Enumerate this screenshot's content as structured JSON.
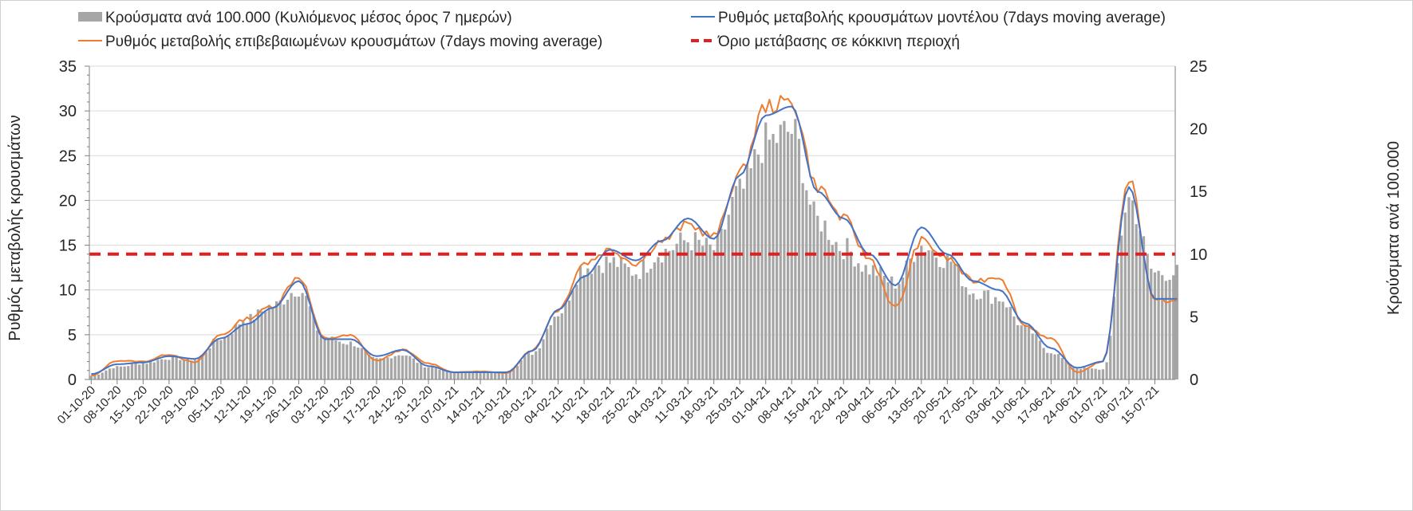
{
  "chart_data": {
    "type": "bar",
    "title": "",
    "ylabel": "Ρυθμός μεταβολής κρουσμάτων",
    "y2label": "Κρούσματα ανά 100.000",
    "ylim": [
      0,
      35
    ],
    "y2lim": [
      0,
      25
    ],
    "yticks": [
      "0",
      "5",
      "10",
      "15",
      "20",
      "25",
      "30",
      "35"
    ],
    "y2ticks": [
      "0",
      "5",
      "10",
      "15",
      "20",
      "25"
    ],
    "grid": true,
    "legend_position": "top",
    "x_tick_labels": [
      "01-10-20",
      "08-10-20",
      "15-10-20",
      "22-10-20",
      "29-10-20",
      "05-11-20",
      "12-11-20",
      "19-11-20",
      "26-11-20",
      "03-12-20",
      "10-12-20",
      "17-12-20",
      "24-12-20",
      "31-12-20",
      "07-01-21",
      "14-01-21",
      "21-01-21",
      "28-01-21",
      "04-02-21",
      "11-02-21",
      "18-02-21",
      "25-02-21",
      "04-03-21",
      "11-03-21",
      "18-03-21",
      "25-03-21",
      "01-04-21",
      "08-04-21",
      "15-04-21",
      "22-04-21",
      "29-04-21",
      "06-05-21",
      "13-05-21",
      "20-05-21",
      "27-05-21",
      "03-06-21",
      "10-06-21",
      "17-06-21",
      "24-06-21",
      "01-07-21",
      "08-07-21",
      "15-07-21"
    ],
    "series": [
      {
        "name": "Κρούσματα ανά 100.000 (Κυλιόμενος μέσος όρος 7 ημερών)",
        "type": "bar",
        "axis": "right",
        "color": "#a6a6a6",
        "weekly_anchor_values": [
          0.3,
          1.0,
          1.3,
          1.7,
          1.6,
          3.3,
          4.8,
          5.9,
          7.2,
          3.3,
          2.9,
          1.6,
          2.0,
          1.0,
          0.6,
          0.6,
          0.6,
          2.1,
          5.3,
          9.0,
          9.4,
          8.6,
          10.2,
          11.1,
          10.4,
          14.9,
          18.9,
          19.8,
          12.7,
          10.5,
          8.8,
          7.7,
          10.7,
          9.6,
          7.0,
          6.5,
          4.1,
          2.2,
          0.9,
          0.8,
          14.4,
          8.5
        ]
      },
      {
        "name": "Ρυθμός μεταβολής κρουσμάτων μοντέλου (7days moving average)",
        "type": "line",
        "axis": "left",
        "color": "#4472c4",
        "weekly_anchor_values": [
          0.6,
          1.7,
          1.9,
          2.6,
          2.3,
          4.6,
          6.2,
          8.0,
          11.0,
          4.5,
          4.5,
          2.6,
          3.3,
          1.5,
          0.8,
          0.8,
          0.8,
          3.2,
          7.8,
          11.5,
          14.5,
          13.3,
          15.5,
          18.0,
          15.7,
          22.8,
          29.5,
          30.5,
          21.0,
          18.0,
          14.0,
          10.5,
          17.0,
          14.0,
          11.0,
          10.0,
          6.3,
          3.5,
          1.3,
          2.0,
          21.5,
          9.0
        ]
      },
      {
        "name": "Ρυθμός μεταβολής επιβεβαιωμένων κρουσμάτων (7days moving average)",
        "type": "line",
        "axis": "left",
        "color": "#ed7d31",
        "weekly_anchor_values": [
          0.4,
          2.1,
          2.0,
          2.8,
          1.9,
          5.0,
          6.8,
          8.2,
          11.5,
          4.6,
          4.9,
          2.1,
          3.3,
          1.8,
          0.8,
          0.9,
          0.7,
          3.3,
          7.8,
          13.0,
          14.5,
          13.0,
          15.5,
          17.3,
          16.0,
          23.0,
          30.5,
          31.0,
          21.5,
          18.0,
          13.5,
          8.0,
          15.5,
          13.5,
          11.0,
          11.5,
          6.0,
          4.5,
          0.8,
          2.0,
          22.5,
          8.8
        ]
      },
      {
        "name": "Όριο μετάβασης σε κόκκινη περιοχή",
        "type": "threshold",
        "axis": "right",
        "color": "#e02020",
        "value": 10
      }
    ]
  }
}
